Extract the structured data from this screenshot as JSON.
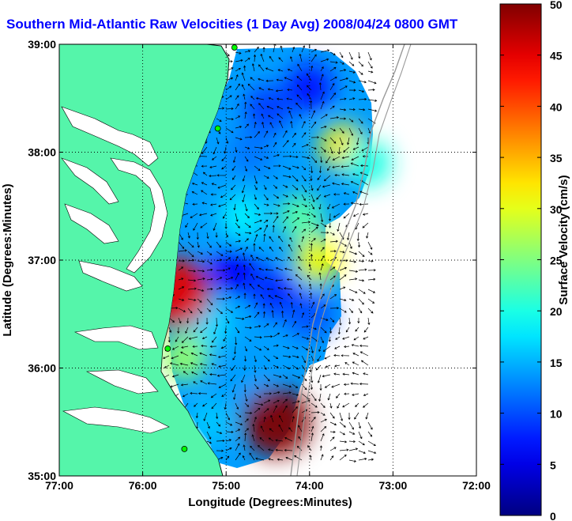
{
  "chart_data": {
    "type": "heatmap",
    "title": "Southern Mid-Atlantic Raw Velocities (1 Day Avg) 2008/04/24 0800 GMT",
    "xlabel": "Longitude (Degrees:Minutes)",
    "ylabel": "Latitude (Degrees:Minutes)",
    "xlim": [
      -77,
      -72
    ],
    "ylim": [
      35,
      39
    ],
    "x_ticks": [
      {
        "value": -77,
        "label": "77:00"
      },
      {
        "value": -76,
        "label": "76:00"
      },
      {
        "value": -75,
        "label": "75:00"
      },
      {
        "value": -74,
        "label": "74:00"
      },
      {
        "value": -73,
        "label": "73:00"
      },
      {
        "value": -72,
        "label": "72:00"
      }
    ],
    "y_ticks": [
      {
        "value": 35,
        "label": "35:00"
      },
      {
        "value": 36,
        "label": "36:00"
      },
      {
        "value": 37,
        "label": "37:00"
      },
      {
        "value": 38,
        "label": "38:00"
      },
      {
        "value": 39,
        "label": "39:00"
      }
    ],
    "grid": true,
    "colorbar": {
      "label": "Surface Velocity (cm/s)",
      "min": 0,
      "max": 50,
      "ticks": [
        0,
        5,
        10,
        15,
        20,
        25,
        30,
        35,
        40,
        45,
        50
      ],
      "colormap": "jet"
    },
    "land_color": "#55f5aa",
    "sites": [
      {
        "lon": -74.9,
        "lat": 38.97
      },
      {
        "lon": -75.1,
        "lat": 38.22
      },
      {
        "lon": -75.7,
        "lat": 36.18
      },
      {
        "lon": -75.5,
        "lat": 35.25
      }
    ],
    "velocity_regions": [
      {
        "lon": -74.5,
        "lat": 38.4,
        "speed": 9
      },
      {
        "lon": -74.0,
        "lat": 38.6,
        "speed": 7
      },
      {
        "lon": -74.7,
        "lat": 38.0,
        "speed": 12
      },
      {
        "lon": -73.6,
        "lat": 38.05,
        "speed": 32
      },
      {
        "lon": -73.3,
        "lat": 37.9,
        "speed": 20
      },
      {
        "lon": -74.8,
        "lat": 37.4,
        "speed": 18
      },
      {
        "lon": -74.1,
        "lat": 37.4,
        "speed": 23
      },
      {
        "lon": -73.9,
        "lat": 37.0,
        "speed": 31
      },
      {
        "lon": -74.9,
        "lat": 36.9,
        "speed": 6
      },
      {
        "lon": -74.4,
        "lat": 36.7,
        "speed": 8
      },
      {
        "lon": -74.0,
        "lat": 36.5,
        "speed": 10
      },
      {
        "lon": -75.2,
        "lat": 36.4,
        "speed": 17
      },
      {
        "lon": -75.5,
        "lat": 36.1,
        "speed": 26
      },
      {
        "lon": -74.8,
        "lat": 35.9,
        "speed": 14
      },
      {
        "lon": -75.2,
        "lat": 35.5,
        "speed": 16
      },
      {
        "lon": -74.4,
        "lat": 35.5,
        "speed": 50
      },
      {
        "lon": -75.6,
        "lat": 36.7,
        "speed": 45
      }
    ]
  }
}
